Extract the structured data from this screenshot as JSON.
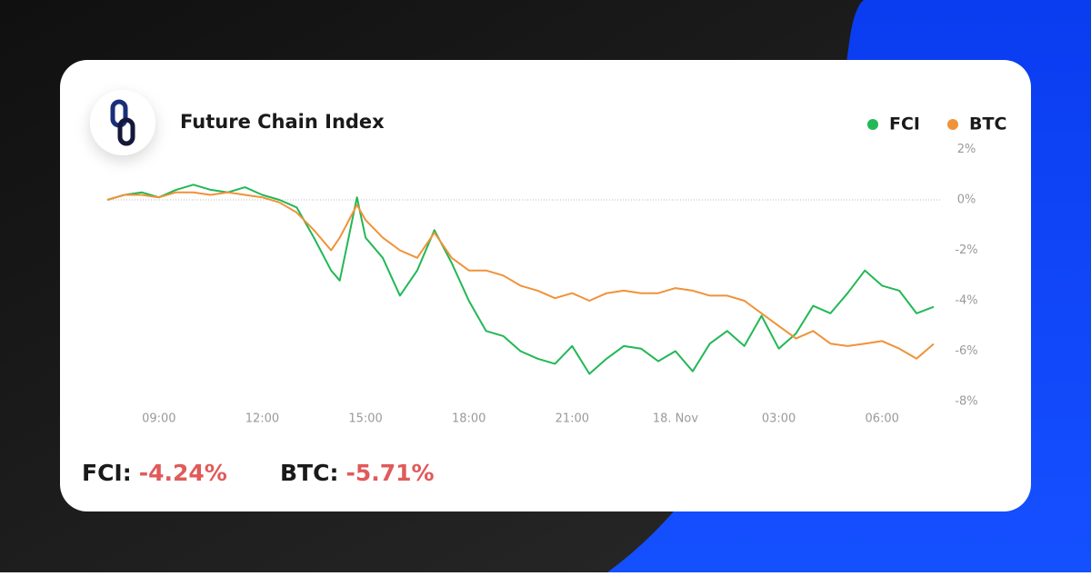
{
  "chart_data": {
    "type": "line",
    "title": "Future Chain Index",
    "xticks": [
      {
        "value": 9,
        "label": "09:00"
      },
      {
        "value": 12,
        "label": "12:00"
      },
      {
        "value": 15,
        "label": "15:00"
      },
      {
        "value": 18,
        "label": "18:00"
      },
      {
        "value": 21,
        "label": "21:00"
      },
      {
        "value": 24,
        "label": "18. Nov"
      },
      {
        "value": 27,
        "label": "03:00"
      },
      {
        "value": 30,
        "label": "06:00"
      }
    ],
    "xlim": [
      7.5,
      31.5
    ],
    "ylim": [
      -8,
      2
    ],
    "yticks": [
      {
        "value": 2,
        "label": "2%"
      },
      {
        "value": 0,
        "label": "0%"
      },
      {
        "value": -2,
        "label": "-2%"
      },
      {
        "value": -4,
        "label": "-4%"
      },
      {
        "value": -6,
        "label": "-6%"
      },
      {
        "value": -8,
        "label": "-8%"
      }
    ],
    "x": [
      7.5,
      8,
      8.5,
      9,
      9.5,
      10,
      10.5,
      11,
      11.5,
      12,
      12.5,
      13,
      13.5,
      14,
      14.25,
      14.75,
      15,
      15.5,
      16,
      16.5,
      17,
      17.5,
      18,
      18.5,
      19,
      19.5,
      20,
      20.5,
      21,
      21.5,
      22,
      22.5,
      23,
      23.5,
      24,
      24.5,
      25,
      25.5,
      26,
      26.5,
      27,
      27.5,
      28,
      28.5,
      29,
      29.5,
      30,
      30.5,
      31,
      31.5
    ],
    "series": [
      {
        "name": "FCI",
        "color": "#22b856",
        "values": [
          0,
          0.2,
          0.3,
          0.1,
          0.4,
          0.6,
          0.4,
          0.3,
          0.5,
          0.2,
          0,
          -0.3,
          -1.5,
          -2.8,
          -3.2,
          0.1,
          -1.5,
          -2.3,
          -3.8,
          -2.8,
          -1.2,
          -2.5,
          -4.0,
          -5.2,
          -5.4,
          -6.0,
          -6.3,
          -6.5,
          -5.8,
          -6.9,
          -6.3,
          -5.8,
          -5.9,
          -6.4,
          -6.0,
          -6.8,
          -5.7,
          -5.2,
          -5.8,
          -4.6,
          -5.9,
          -5.3,
          -4.2,
          -4.5,
          -3.7,
          -2.8,
          -3.4,
          -3.6,
          -4.5,
          -4.24
        ]
      },
      {
        "name": "BTC",
        "color": "#f0923a",
        "values": [
          0,
          0.2,
          0.2,
          0.1,
          0.3,
          0.3,
          0.2,
          0.3,
          0.2,
          0.1,
          -0.1,
          -0.5,
          -1.2,
          -2.0,
          -1.5,
          -0.2,
          -0.8,
          -1.5,
          -2.0,
          -2.3,
          -1.3,
          -2.3,
          -2.8,
          -2.8,
          -3.0,
          -3.4,
          -3.6,
          -3.9,
          -3.7,
          -4.0,
          -3.7,
          -3.6,
          -3.7,
          -3.7,
          -3.5,
          -3.6,
          -3.8,
          -3.8,
          -4.0,
          -4.5,
          -5.0,
          -5.5,
          -5.2,
          -5.7,
          -5.8,
          -5.7,
          -5.6,
          -5.9,
          -6.3,
          -5.71
        ]
      }
    ],
    "summary": [
      {
        "label": "FCI:",
        "value": "-4.24%"
      },
      {
        "label": "BTC:",
        "value": "-5.71%"
      }
    ]
  }
}
